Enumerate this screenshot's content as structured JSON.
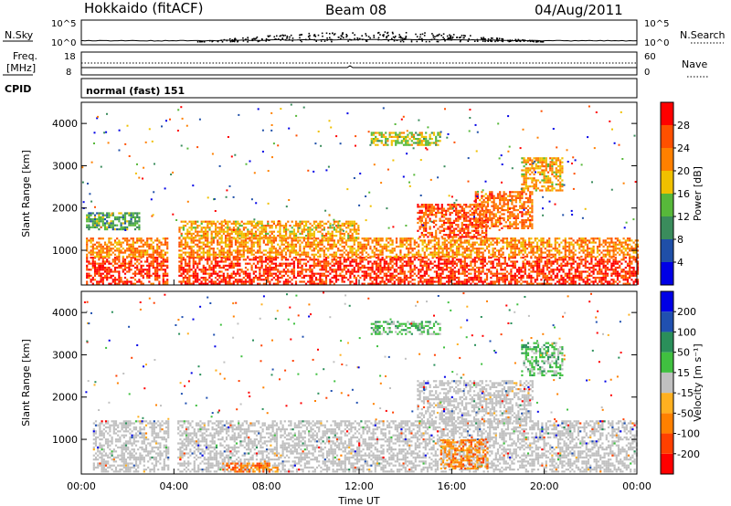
{
  "header": {
    "station": "Hokkaido (fitACF)",
    "beam": "Beam 08",
    "date": "04/Aug/2011"
  },
  "noise_panel": {
    "left_label": "N.Sky",
    "right_label": "N.Search",
    "left_ticks": [
      "10^5",
      "10^0"
    ],
    "right_ticks": [
      "10^5",
      "10^0"
    ]
  },
  "freq_panel": {
    "left_label_1": "Freq.",
    "left_label_2": "[MHz]",
    "right_label": "Nave",
    "left_ticks": [
      "18",
      "8"
    ],
    "right_ticks": [
      "60",
      "0"
    ]
  },
  "cpid_panel": {
    "label": "CPID",
    "mode": "normal (fast) 151"
  },
  "colors": {
    "power": [
      "#0000e6",
      "#1f4fa8",
      "#3a8c5c",
      "#57b83a",
      "#f0c000",
      "#ff8000",
      "#ff5000",
      "#ff0000"
    ],
    "velocity": [
      "#ff0000",
      "#ff4000",
      "#ff8000",
      "#ffb020",
      "#c0c0c0",
      "#40c040",
      "#2a8f5a",
      "#2050b0",
      "#0000e6"
    ],
    "ground_scatter": "#c0c0c0"
  },
  "chart_data": [
    {
      "type": "heatmap",
      "name": "power",
      "xlabel": "",
      "ylabel": "Slant Range [km]",
      "x_range_hours_ut": [
        0,
        24
      ],
      "ylim": [
        180,
        4500
      ],
      "yticks": [
        "1000",
        "2000",
        "3000",
        "4000"
      ],
      "yticks_values": [
        1000,
        2000,
        3000,
        4000
      ],
      "colorbar": {
        "label": "Power [dB]",
        "tick_labels": [
          "4",
          "8",
          "12",
          "16",
          "20",
          "24",
          "28"
        ],
        "range": [
          0,
          32
        ]
      },
      "regions": [
        {
          "t0": 0.2,
          "t1": 24,
          "r0": 200,
          "r1": 850,
          "level": 28
        },
        {
          "t0": 0.2,
          "t1": 24,
          "r0": 850,
          "r1": 1300,
          "level": 22
        },
        {
          "t0": 4.2,
          "t1": 12,
          "r0": 1300,
          "r1": 1700,
          "level": 20
        },
        {
          "t0": 0.2,
          "t1": 2.5,
          "r0": 1500,
          "r1": 1900,
          "level": 12
        },
        {
          "t0": 14.5,
          "t1": 17.5,
          "r0": 1300,
          "r1": 2100,
          "level": 26
        },
        {
          "t0": 17.0,
          "t1": 19.5,
          "r0": 1500,
          "r1": 2400,
          "level": 24
        },
        {
          "t0": 19.0,
          "t1": 20.8,
          "r0": 2400,
          "r1": 3200,
          "level": 20
        },
        {
          "t0": 12.5,
          "t1": 15.5,
          "r0": 3500,
          "r1": 3800,
          "level": 16
        }
      ]
    },
    {
      "type": "heatmap",
      "name": "velocity",
      "xlabel": "Time UT",
      "ylabel": "Slant Range [km]",
      "x_range_hours_ut": [
        0,
        24
      ],
      "ylim": [
        180,
        4500
      ],
      "yticks": [
        "1000",
        "2000",
        "3000",
        "4000"
      ],
      "yticks_values": [
        1000,
        2000,
        3000,
        4000
      ],
      "xticks": [
        "00:00",
        "04:00",
        "08:00",
        "12:00",
        "16:00",
        "20:00",
        "00:00"
      ],
      "xticks_values": [
        0,
        4,
        8,
        12,
        16,
        20,
        24
      ],
      "colorbar": {
        "label": "Velocity [m s⁻¹]",
        "tick_labels": [
          "-200",
          "-100",
          "-50",
          "-15",
          "15",
          "50",
          "100",
          "200"
        ]
      },
      "regions": [
        {
          "t0": 0.5,
          "t1": 24,
          "r0": 250,
          "r1": 1450,
          "level": "gs"
        },
        {
          "t0": 14.5,
          "t1": 19.5,
          "r0": 1400,
          "r1": 2400,
          "level": "gs"
        },
        {
          "t0": 6.0,
          "t1": 8.5,
          "r0": 250,
          "r1": 450,
          "level": -50
        },
        {
          "t0": 15.5,
          "t1": 17.5,
          "r0": 300,
          "r1": 1000,
          "level": -50
        },
        {
          "t0": 19.0,
          "t1": 20.8,
          "r0": 2500,
          "r1": 3300,
          "level": 50
        },
        {
          "t0": 12.5,
          "t1": 15.5,
          "r0": 3500,
          "r1": 3800,
          "level": 50
        }
      ]
    }
  ]
}
